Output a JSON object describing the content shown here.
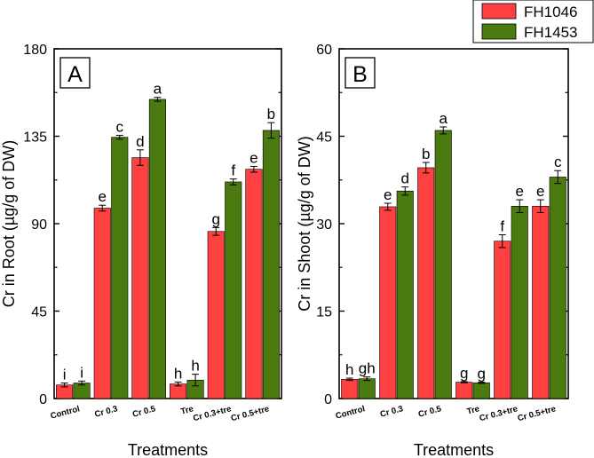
{
  "legend": {
    "items": [
      {
        "label": "FH1046",
        "color": "#ff4040"
      },
      {
        "label": "FH1453",
        "color": "#4a7a10"
      }
    ]
  },
  "chart_data": [
    {
      "type": "bar",
      "panel_label": "A",
      "ylabel": "Cr in Root (µg/g of DW)",
      "xlabel": "Treatments",
      "ylim": [
        0,
        180
      ],
      "yticks": [
        0,
        45,
        90,
        135,
        180
      ],
      "categories": [
        "Control",
        "Cr 0.3",
        "Cr 0.5",
        "Tre",
        "Cr 0.3+tre",
        "Cr 0.5+tre"
      ],
      "series": [
        {
          "name": "FH1046",
          "values": [
            7,
            98,
            124,
            7.5,
            86,
            118
          ],
          "errors": [
            1,
            1.5,
            4,
            1,
            2,
            1.5
          ],
          "letters": [
            "i",
            "e",
            "d",
            "h",
            "g",
            "e"
          ]
        },
        {
          "name": "FH1453",
          "values": [
            8,
            134.5,
            154,
            9.5,
            111.5,
            138
          ],
          "errors": [
            1,
            1,
            1,
            3,
            1.5,
            4
          ],
          "letters": [
            "i",
            "c",
            "a",
            "h",
            "f",
            "b"
          ]
        }
      ]
    },
    {
      "type": "bar",
      "panel_label": "B",
      "ylabel": "Cr in Shoot (µg/g of DW)",
      "xlabel": "Treatments",
      "ylim": [
        0,
        60
      ],
      "yticks": [
        0,
        15,
        30,
        45,
        60
      ],
      "categories": [
        "Control",
        "Cr 0.3",
        "Cr 0.5",
        "Tre",
        "Cr 0.3+tre",
        "Cr 0.5+tre"
      ],
      "series": [
        {
          "name": "FH1046",
          "values": [
            3.3,
            32.9,
            39.6,
            2.8,
            27,
            33
          ],
          "errors": [
            0.2,
            0.6,
            0.9,
            0.1,
            1.1,
            1.1
          ],
          "letters": [
            "h",
            "e",
            "b",
            "g",
            "f",
            "e"
          ]
        },
        {
          "name": "FH1453",
          "values": [
            3.4,
            35.6,
            46,
            2.7,
            33,
            38
          ],
          "errors": [
            0.3,
            0.7,
            0.6,
            0.1,
            1.1,
            1.1
          ],
          "letters": [
            "gh",
            "d",
            "a",
            "g",
            "e",
            "c"
          ]
        }
      ]
    }
  ]
}
